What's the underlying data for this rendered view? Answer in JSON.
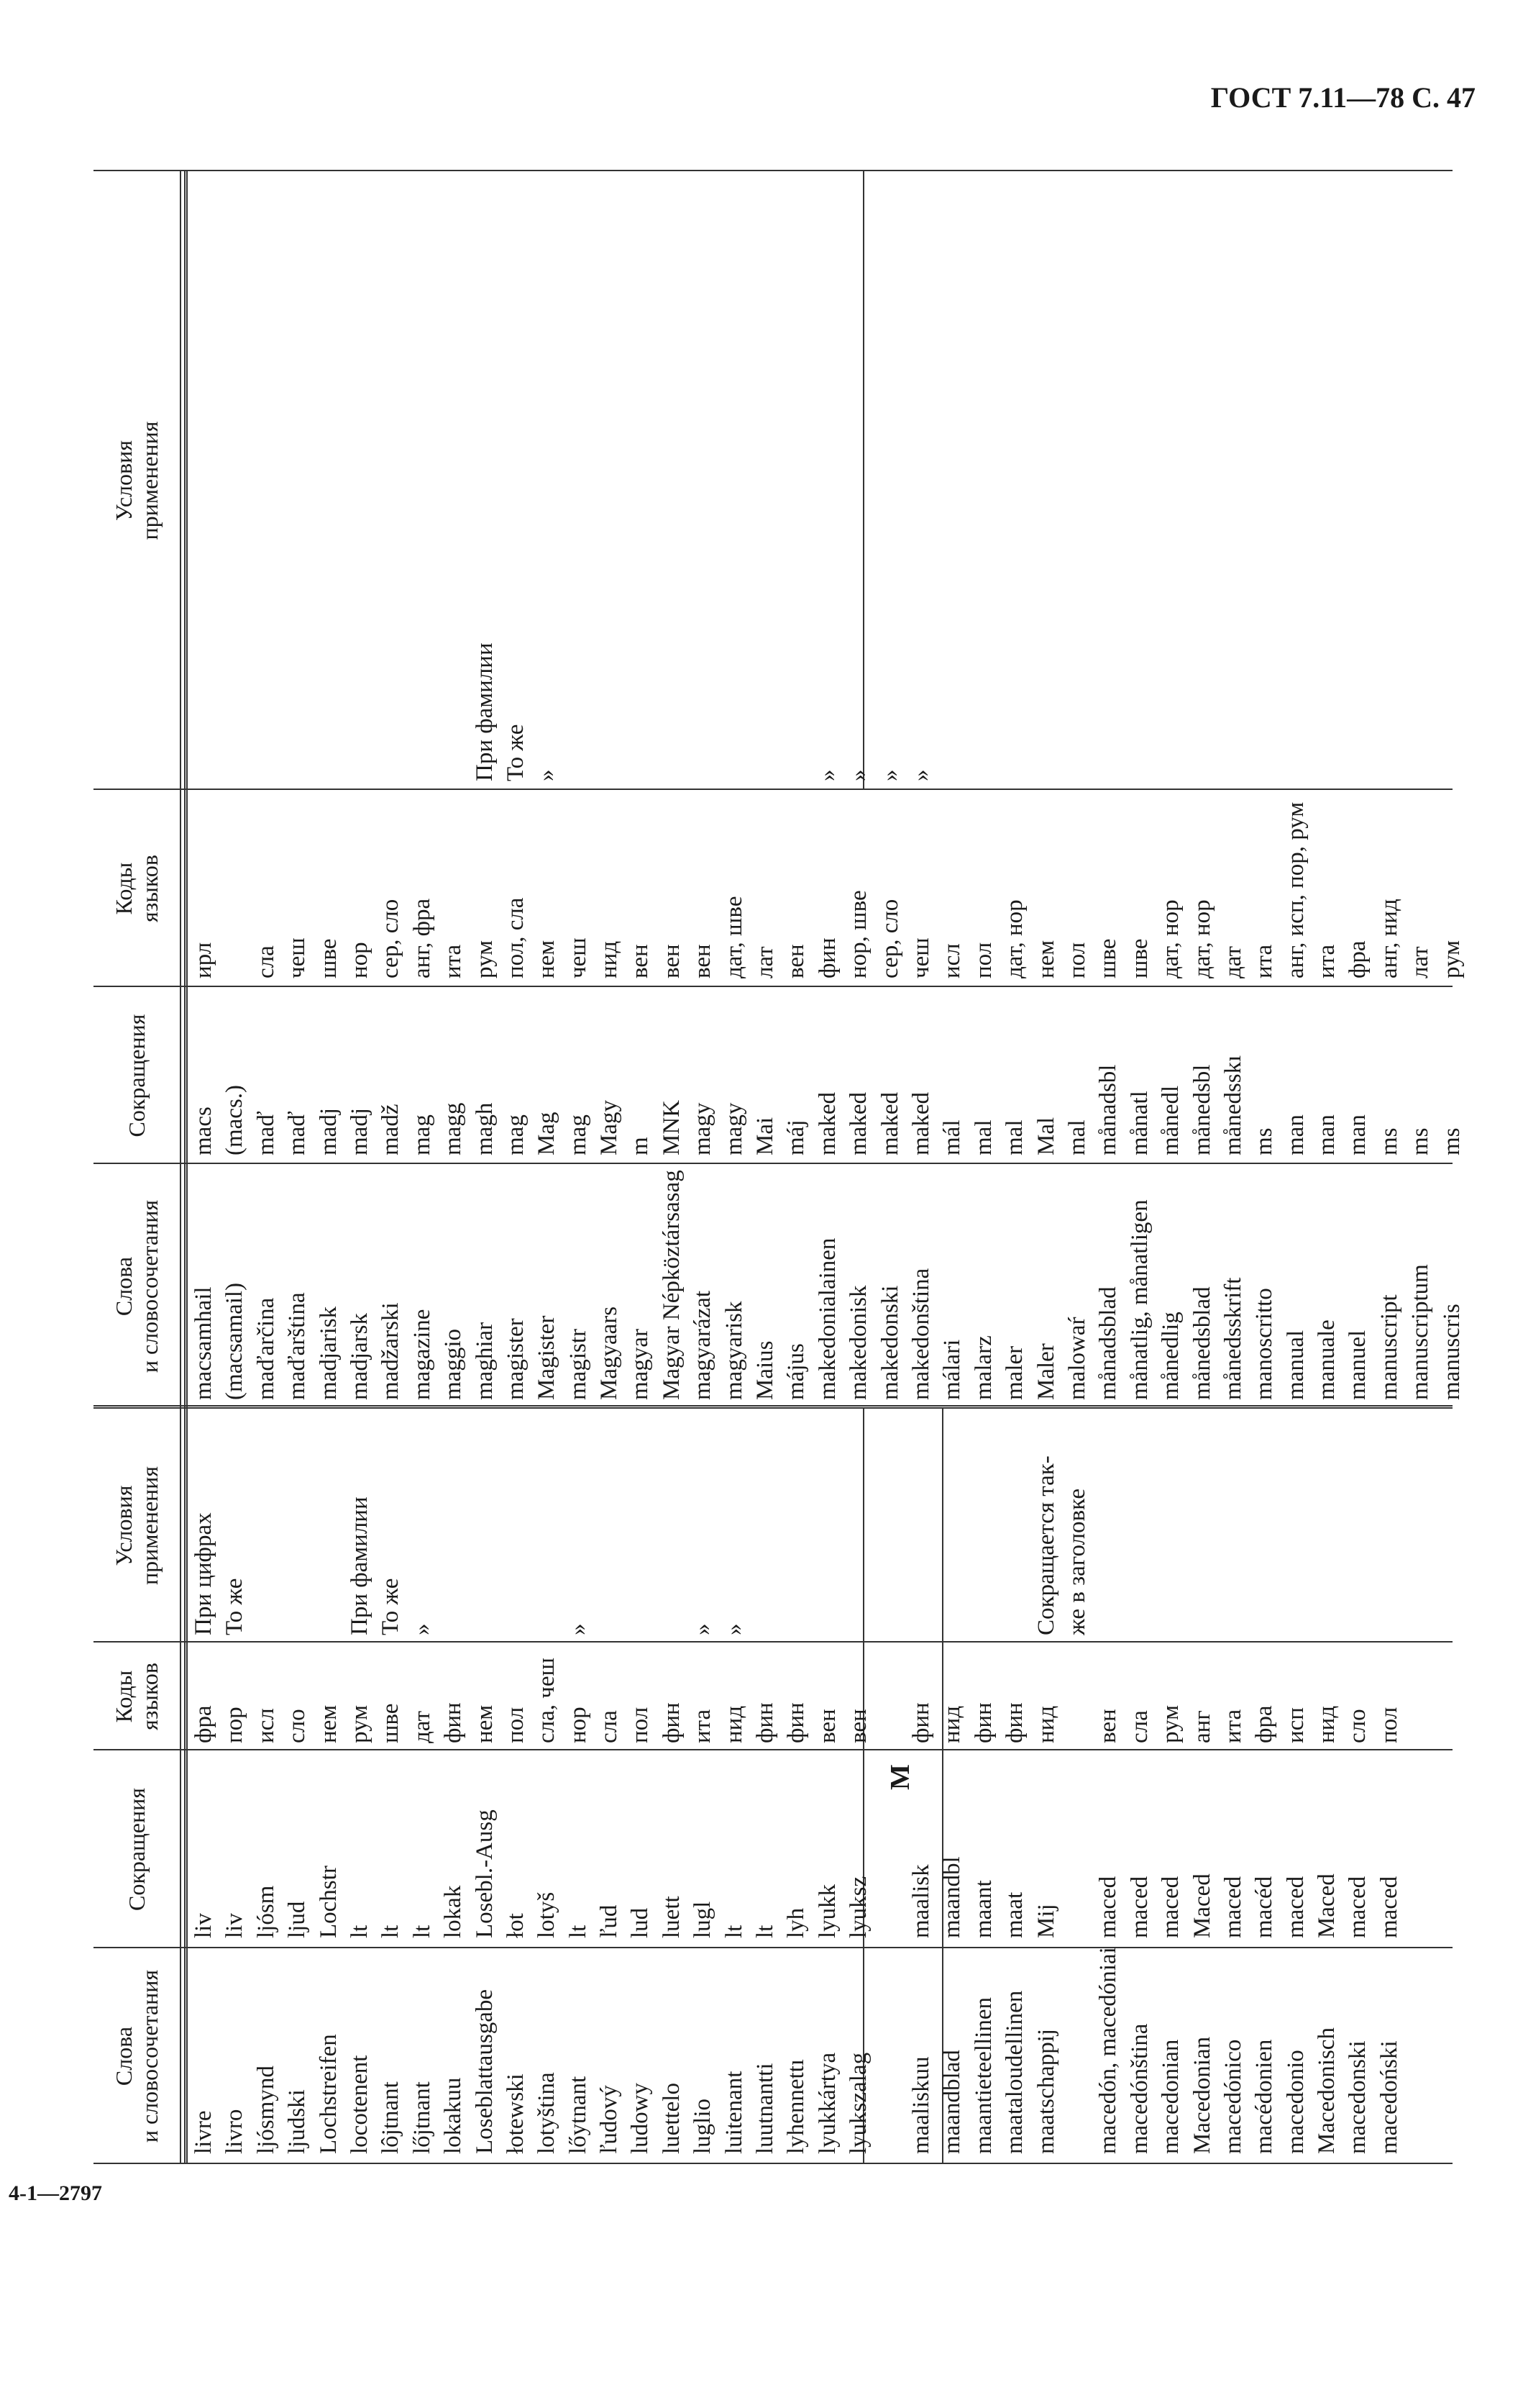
{
  "page": {
    "header": "ГОСТ 7.11—78 С. 47",
    "footer": "4-1—2797"
  },
  "table": {
    "headers": {
      "words": [
        "Слова",
        "и словосочетания"
      ],
      "abbr": [
        "Сокращения"
      ],
      "codes": [
        "Коды",
        "языков"
      ],
      "conditions": [
        "Условия",
        "применения"
      ]
    },
    "section_letter": "M",
    "left": {
      "words": [
        "livre",
        "livro",
        "ljósmynd",
        "ljudski",
        "Lochstreifen",
        "locotenent",
        "lôjtnant",
        "lőjtnant",
        "lokakuu",
        "Loseblattausgabe",
        "łotewski",
        "lotyština",
        "lőytnant",
        "ľudový",
        "ludowy",
        "luettelo",
        "luglio",
        "luitenant",
        "luutnantti",
        "lyhennettı",
        "lyukkártya",
        "lyukszalag",
        "",
        "maaliskuu",
        "maandblad",
        "maantieteellinen",
        "maataloudellinen",
        "maatschappij",
        "",
        "macedón, macedóniai",
        "macedónština",
        "macedonian",
        "Macedonian",
        "macedónico",
        "macédonien",
        "macedonio",
        "Macedonisch",
        "macedonski",
        "macedoński"
      ],
      "abbr": [
        "liv",
        "liv",
        "ljósm",
        "ljud",
        "Lochstr",
        "lt",
        "lt",
        "lt",
        "lokak",
        "Losebl.-Ausg",
        "łot",
        "lotyš",
        "lt",
        "ľud",
        "lud",
        "luett",
        "lugl",
        "lt",
        "lt",
        "lyh",
        "lyukk",
        "lyuksz",
        "",
        "maalisk",
        "maandbl",
        "maant",
        "maat",
        "Mij",
        "",
        "maced",
        "maced",
        "maced",
        "Maced",
        "maced",
        "macéd",
        "maced",
        "Maced",
        "maced",
        "maced"
      ],
      "codes": [
        "фра",
        "пор",
        "исл",
        "сло",
        "нем",
        "рум",
        "шве",
        "дат",
        "фин",
        "нем",
        "пол",
        "сла, чеш",
        "нор",
        "сла",
        "пол",
        "фин",
        "ита",
        "нид",
        "фин",
        "фин",
        "вен",
        "вен",
        "",
        "фин",
        "нид",
        "фин",
        "фин",
        "нид",
        "",
        "вен",
        "сла",
        "рум",
        "анг",
        "ита",
        "фра",
        "исп",
        "нид",
        "сло",
        "пол"
      ],
      "conditions": [
        "При цифрах",
        "То же",
        "",
        "",
        "",
        "При фамилии",
        "То же",
        "»",
        "",
        "",
        "",
        "",
        "»",
        "",
        "",
        "",
        "»",
        "»",
        "",
        "",
        "",
        "",
        "",
        "",
        "",
        "",
        "",
        "Сокращается так-",
        "же в заголовке",
        "",
        "",
        "",
        "",
        "",
        "",
        "",
        "",
        "",
        ""
      ]
    },
    "right": {
      "words": [
        "macsamhail",
        "(macsamail)",
        "maďarčina",
        "maďarština",
        "madjarisk",
        "madjarsk",
        "madžarski",
        "magazine",
        "maggio",
        "maghiar",
        "magister",
        "Magister",
        "magistr",
        "Magyaars",
        "magyar",
        "Magyar Népköztársasag",
        "magyarázat",
        "magyarisk",
        "Maius",
        "május",
        "makedonialainen",
        "makedonisk",
        "makedonski",
        "makedonština",
        "málari",
        "malarz",
        "maler",
        "Maler",
        "malowaŕ",
        "månadsblad",
        "månatlig, månatligen",
        "månedlig",
        "månedsblad",
        "månedsskrift",
        "manoscritto",
        "manual",
        "manuale",
        "manuel",
        "manuscript",
        "manuscriptum",
        "manuscris"
      ],
      "abbr": [
        "macs",
        "(macs.)",
        "maď",
        "maď",
        "madj",
        "madj",
        "madž",
        "mag",
        "magg",
        "magh",
        "mag",
        "Mag",
        "mag",
        "Magy",
        "m",
        "MNK",
        "magy",
        "magy",
        "Mai",
        "máj",
        "maked",
        "maked",
        "maked",
        "maked",
        "mál",
        "mal",
        "mal",
        "Mal",
        "mal",
        "månadsbl",
        "månatl",
        "månedl",
        "månedsbl",
        "månedsskı",
        "ms",
        "man",
        "man",
        "man",
        "ms",
        "ms",
        "ms"
      ],
      "codes": [
        "ирл",
        "",
        "сла",
        "чеш",
        "шве",
        "нор",
        "сер, сло",
        "анг, фра",
        "ита",
        "рум",
        "пол, сла",
        "нем",
        "чеш",
        "нид",
        "вен",
        "вен",
        "вен",
        "дат, шве",
        "лат",
        "вен",
        "фин",
        "нор, шве",
        "сер, сло",
        "чеш",
        "исл",
        "пол",
        "дат, нор",
        "нем",
        "пол",
        "шве",
        "шве",
        "дат, нор",
        "дат, нор",
        "дат",
        "ита",
        "анг, исп, пор, рум",
        "ита",
        "фра",
        "анг, нид",
        "лат",
        "рум"
      ],
      "conditions": [
        "",
        "",
        "",
        "",
        "",
        "",
        "",
        "",
        "",
        "При фамилии",
        "То же",
        "»",
        "",
        "",
        "",
        "",
        "",
        "",
        "",
        "",
        "»",
        "»",
        "»",
        "»",
        "",
        "",
        "",
        "",
        "",
        "",
        "",
        "",
        "",
        "",
        "",
        "",
        "",
        "",
        "",
        "",
        ""
      ]
    }
  }
}
